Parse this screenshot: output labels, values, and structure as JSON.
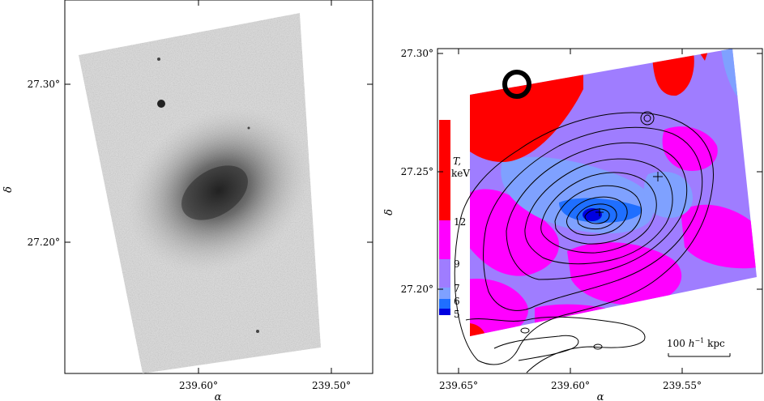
{
  "left_panel": {
    "x_ticks": [
      "239.60°",
      "239.50°"
    ],
    "y_ticks": [
      "27.30°",
      "27.20°"
    ],
    "xlabel": "α",
    "ylabel": "δ"
  },
  "right_panel": {
    "x_ticks": [
      "239.65°",
      "239.60°",
      "239.55°"
    ],
    "y_ticks": [
      "27.30°",
      "27.25°",
      "27.20°"
    ],
    "xlabel": "α",
    "ylabel": "δ",
    "colorbar": {
      "title_1": "T,",
      "title_2": "keV",
      "labels": [
        "12",
        "9",
        "7",
        "6",
        "5"
      ],
      "colors": [
        "#ff0000",
        "#ff00ff",
        "#9f7dff",
        "#7fa1ff",
        "#1f6fff",
        "#0000e0"
      ]
    },
    "scale_bar": {
      "prefix": "100 ",
      "h": "h",
      "sup": "−1",
      "suffix": " kpc"
    }
  },
  "colors": {
    "red": "#ff0000",
    "magenta": "#ff00ff",
    "violet": "#9f7dff",
    "lightblue": "#7fa1ff",
    "blue": "#1f6fff",
    "darkblue": "#0000e0"
  }
}
